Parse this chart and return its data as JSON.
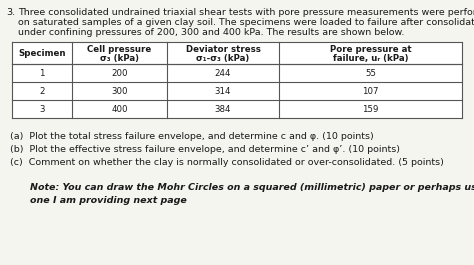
{
  "problem_number": "3.",
  "intro_line1": "Three consolidated undrained triaxial shear tests with pore pressure measurements were performed",
  "intro_line2": "on saturated samples of a given clay soil. The specimens were loaded to failure after consolidation",
  "intro_line3": "under confining pressures of 200, 300 and 400 kPa. The results are shown below.",
  "header_row1": [
    "Specimen",
    "Cell pressure",
    "Deviator stress",
    "Pore pressure at"
  ],
  "header_row2": [
    "",
    "σ₃ (kPa)",
    "σ₁-σ₃ (kPa)",
    "failure, uᵣ (kPa)"
  ],
  "table_rows": [
    [
      "1",
      "200",
      "244",
      "55"
    ],
    [
      "2",
      "300",
      "314",
      "107"
    ],
    [
      "3",
      "400",
      "384",
      "159"
    ]
  ],
  "q1": "(a)  Plot the total stress failure envelope, and determine c and φ. (10 points)",
  "q2": "(b)  Plot the effective stress failure envelope, and determine c’ and φ’. (10 points)",
  "q3": "(c)  Comment on whether the clay is normally consolidated or over-consolidated. (5 points)",
  "note1": "Note: You can draw the Mohr Circles on a squared (millimetric) paper or perhaps use the",
  "note2": "one I am providing next page",
  "bg_color": "#f5f5f0",
  "text_color": "#1a1a1a",
  "line_color": "#555555"
}
